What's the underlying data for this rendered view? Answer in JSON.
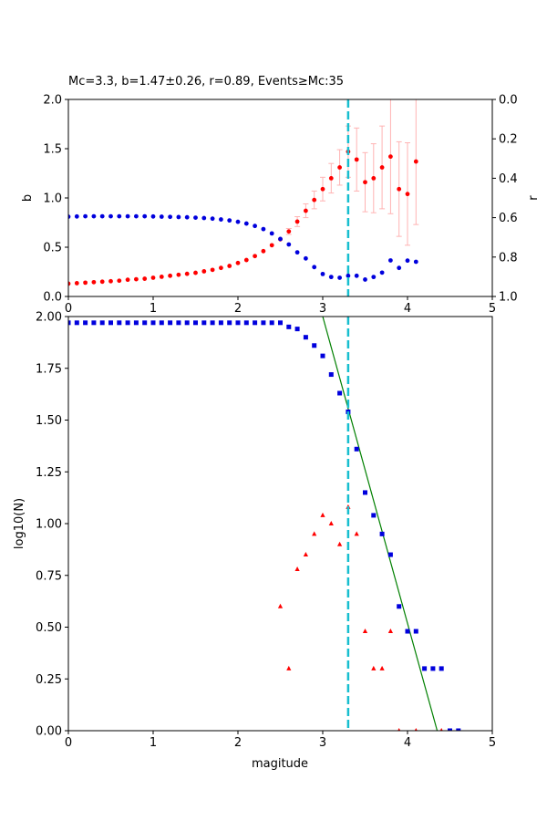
{
  "chart_data": [
    {
      "type": "scatter",
      "title": "Mc=3.3, b=1.47±0.26, r=0.89, Events≥Mc:35",
      "xlabel": "",
      "ylabel": "b",
      "ylabel_right": "r",
      "xlim": [
        0,
        5
      ],
      "ylim": [
        0,
        2.0
      ],
      "ylim_right": [
        1.0,
        0.0
      ],
      "x_ticks": [
        "0",
        "1",
        "2",
        "3",
        "4",
        "5"
      ],
      "y_ticks": [
        "0.0",
        "0.5",
        "1.0",
        "1.5",
        "2.0"
      ],
      "y_ticks_right": [
        "0.0",
        "0.2",
        "0.4",
        "0.6",
        "0.8",
        "1.0"
      ],
      "grid": false,
      "mc_line": {
        "x": 3.3,
        "color": "#17becf"
      },
      "series": [
        {
          "axis": "left",
          "color": "#ff0000",
          "error_color": "#ffb3b3",
          "x": [
            0.0,
            0.1,
            0.2,
            0.3,
            0.4,
            0.5,
            0.6,
            0.7,
            0.8,
            0.9,
            1.0,
            1.1,
            1.2,
            1.3,
            1.4,
            1.5,
            1.6,
            1.7,
            1.8,
            1.9,
            2.0,
            2.1,
            2.2,
            2.3,
            2.4,
            2.5,
            2.6,
            2.7,
            2.8,
            2.9,
            3.0,
            3.1,
            3.2,
            3.3,
            3.4,
            3.5,
            3.6,
            3.7,
            3.8,
            3.9,
            4.0,
            4.1
          ],
          "values": [
            0.13,
            0.135,
            0.14,
            0.145,
            0.15,
            0.155,
            0.16,
            0.17,
            0.175,
            0.18,
            0.19,
            0.2,
            0.21,
            0.22,
            0.23,
            0.24,
            0.255,
            0.27,
            0.29,
            0.31,
            0.34,
            0.37,
            0.41,
            0.46,
            0.52,
            0.58,
            0.66,
            0.76,
            0.87,
            0.98,
            1.09,
            1.2,
            1.31,
            1.47,
            1.39,
            1.16,
            1.2,
            1.31,
            1.42,
            1.09,
            1.04,
            1.37
          ],
          "errors": [
            0,
            0,
            0,
            0,
            0,
            0,
            0,
            0,
            0,
            0,
            0,
            0,
            0,
            0,
            0,
            0,
            0,
            0,
            0,
            0,
            0,
            0,
            0,
            0,
            0,
            0,
            0.03,
            0.05,
            0.07,
            0.09,
            0.12,
            0.15,
            0.18,
            0.26,
            0.32,
            0.3,
            0.35,
            0.42,
            0.58,
            0.48,
            0.52,
            0.64
          ]
        },
        {
          "axis": "right",
          "color": "#0000dd",
          "x": [
            0.0,
            0.1,
            0.2,
            0.3,
            0.4,
            0.5,
            0.6,
            0.7,
            0.8,
            0.9,
            1.0,
            1.1,
            1.2,
            1.3,
            1.4,
            1.5,
            1.6,
            1.7,
            1.8,
            1.9,
            2.0,
            2.1,
            2.2,
            2.3,
            2.4,
            2.5,
            2.6,
            2.7,
            2.8,
            2.9,
            3.0,
            3.1,
            3.2,
            3.3,
            3.4,
            3.5,
            3.6,
            3.7,
            3.8,
            3.9,
            4.0,
            4.1
          ],
          "values": [
            0.595,
            0.594,
            0.593,
            0.593,
            0.593,
            0.593,
            0.593,
            0.593,
            0.593,
            0.593,
            0.594,
            0.595,
            0.596,
            0.597,
            0.598,
            0.6,
            0.602,
            0.605,
            0.609,
            0.614,
            0.621,
            0.63,
            0.642,
            0.658,
            0.68,
            0.708,
            0.736,
            0.776,
            0.807,
            0.851,
            0.886,
            0.901,
            0.905,
            0.895,
            0.895,
            0.914,
            0.901,
            0.879,
            0.817,
            0.855,
            0.818,
            0.824
          ]
        }
      ]
    },
    {
      "type": "scatter",
      "title": "",
      "xlabel": "magitude",
      "ylabel": "log10(N)",
      "xlim": [
        0,
        5
      ],
      "ylim": [
        0,
        2.0
      ],
      "x_ticks": [
        "0",
        "1",
        "2",
        "3",
        "4",
        "5"
      ],
      "y_ticks": [
        "0.00",
        "0.25",
        "0.50",
        "0.75",
        "1.00",
        "1.25",
        "1.50",
        "1.75",
        "2.00"
      ],
      "grid": false,
      "mc_line": {
        "x": 3.3,
        "color": "#17becf"
      },
      "fit_line": {
        "color": "#008000",
        "x": [
          3.0,
          4.35
        ],
        "y": [
          2.0,
          0.0
        ]
      },
      "series": [
        {
          "marker": "square",
          "color": "#0000dd",
          "x": [
            0.0,
            0.1,
            0.2,
            0.3,
            0.4,
            0.5,
            0.6,
            0.7,
            0.8,
            0.9,
            1.0,
            1.1,
            1.2,
            1.3,
            1.4,
            1.5,
            1.6,
            1.7,
            1.8,
            1.9,
            2.0,
            2.1,
            2.2,
            2.3,
            2.4,
            2.5,
            2.6,
            2.7,
            2.8,
            2.9,
            3.0,
            3.1,
            3.2,
            3.3,
            3.4,
            3.5,
            3.6,
            3.7,
            3.8,
            3.9,
            4.0,
            4.1,
            4.2,
            4.3,
            4.4,
            4.5,
            4.6
          ],
          "values": [
            1.97,
            1.97,
            1.97,
            1.97,
            1.97,
            1.97,
            1.97,
            1.97,
            1.97,
            1.97,
            1.97,
            1.97,
            1.97,
            1.97,
            1.97,
            1.97,
            1.97,
            1.97,
            1.97,
            1.97,
            1.97,
            1.97,
            1.97,
            1.97,
            1.97,
            1.97,
            1.95,
            1.94,
            1.9,
            1.86,
            1.81,
            1.72,
            1.63,
            1.54,
            1.36,
            1.15,
            1.04,
            0.95,
            0.85,
            0.6,
            0.48,
            0.48,
            0.3,
            0.3,
            0.3,
            0.0,
            0.0
          ]
        },
        {
          "marker": "triangle",
          "color": "#ff0000",
          "x": [
            2.5,
            2.6,
            2.7,
            2.8,
            2.9,
            3.0,
            3.1,
            3.2,
            3.3,
            3.4,
            3.5,
            3.6,
            3.7,
            3.8,
            3.9,
            4.1,
            4.4
          ],
          "values": [
            0.6,
            0.3,
            0.78,
            0.85,
            0.95,
            1.04,
            1.0,
            0.9,
            1.08,
            0.95,
            0.48,
            0.3,
            0.3,
            0.48,
            0.0,
            0.0,
            0.0
          ]
        }
      ]
    }
  ]
}
